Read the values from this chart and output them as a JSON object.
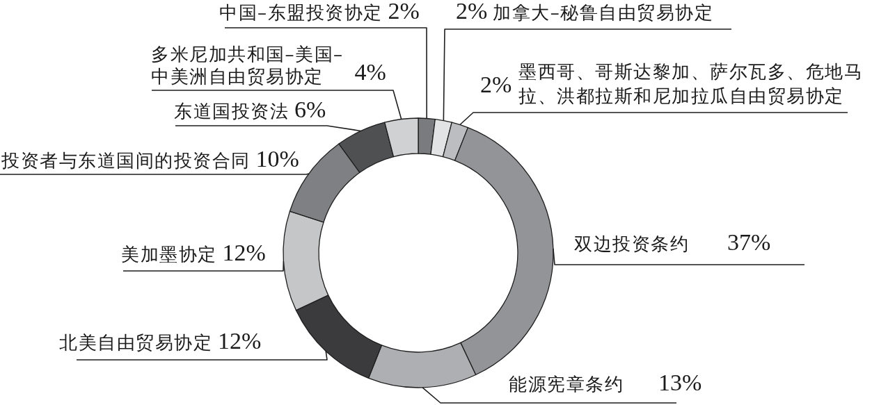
{
  "chart_data": {
    "type": "donut",
    "categories": [
      "中国–东盟投资协定",
      "加拿大–秘鲁自由贸易协定",
      "墨西哥、哥斯达黎加、萨尔瓦多、危地马拉、洪都拉斯和尼加拉瓜自由贸易协定",
      "双边投资条约",
      "能源宪章条约",
      "北美自由贸易协定",
      "美加墨协定",
      "投资者与东道国间的投资合同",
      "东道国投资法",
      "多米尼加共和国–美国–中美洲自由贸易协定"
    ],
    "values": [
      2,
      2,
      2,
      37,
      13,
      12,
      12,
      10,
      6,
      4
    ],
    "value_labels": [
      "2%",
      "2%",
      "2%",
      "37%",
      "13%",
      "12%",
      "12%",
      "10%",
      "6%",
      "4%"
    ],
    "colors": [
      "#7a7b7e",
      "#e2e3e5",
      "#bcbdc0",
      "#939497",
      "#aeafb2",
      "#3b3b3d",
      "#c5c6c8",
      "#7f8083",
      "#4f5052",
      "#d0d1d3"
    ]
  }
}
